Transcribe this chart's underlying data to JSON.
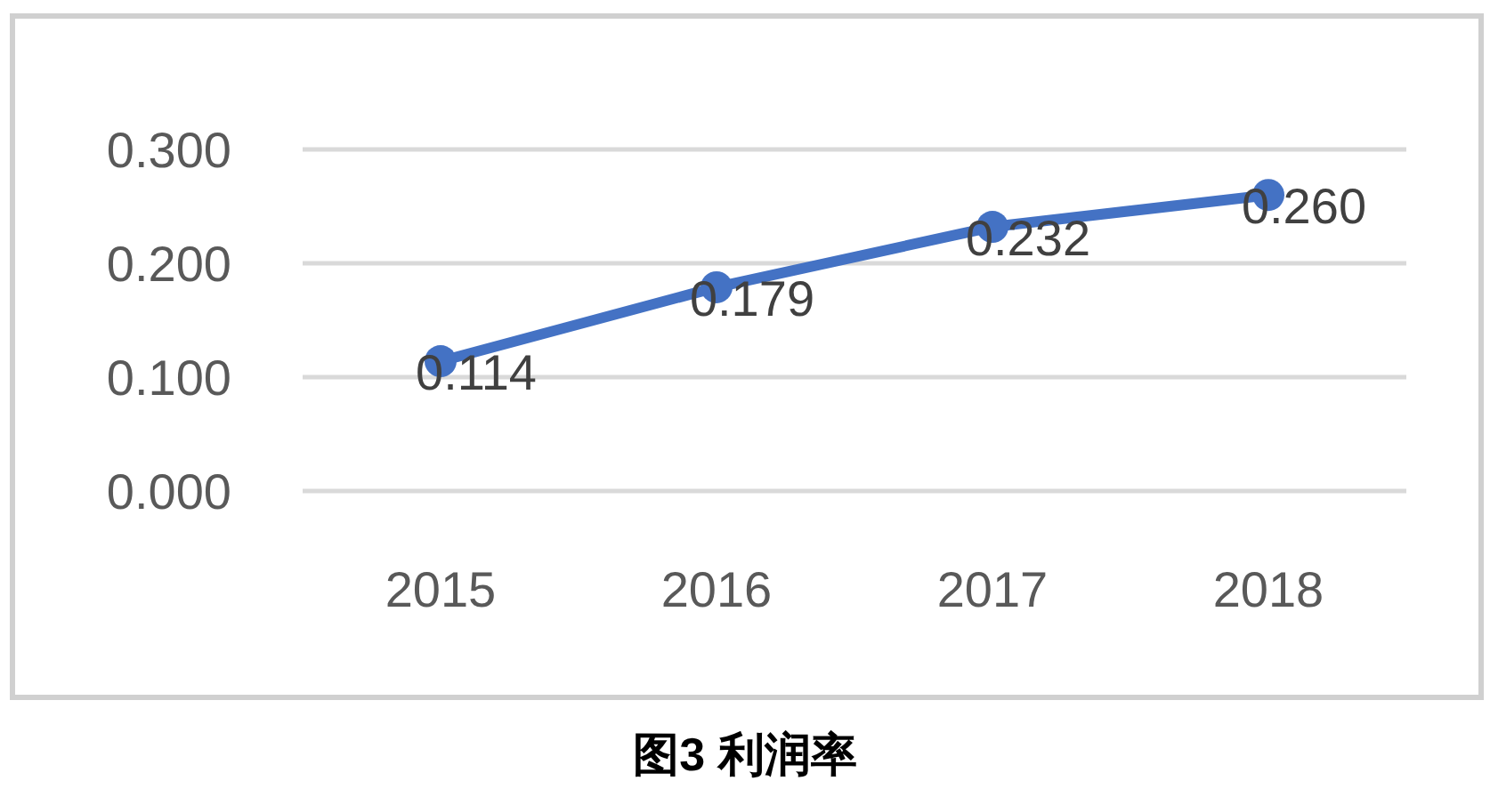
{
  "chart_data": {
    "type": "line",
    "title": "图3  利润率",
    "categories": [
      "2015",
      "2016",
      "2017",
      "2018"
    ],
    "series": [
      {
        "color": "#4472c4",
        "values": [
          0.114,
          0.179,
          0.232,
          0.26
        ],
        "value_labels": [
          "0.114",
          "0.179",
          "0.232",
          "0.260"
        ]
      }
    ],
    "ylim": [
      0,
      0.3
    ],
    "yticks": [
      {
        "value": 0,
        "label": "0.000"
      },
      {
        "value": 0.1,
        "label": "0.100"
      },
      {
        "value": 0.2,
        "label": "0.200"
      },
      {
        "value": 0.3,
        "label": "0.300"
      }
    ],
    "grid": "y",
    "marker": "circle",
    "line_style": "solid"
  }
}
